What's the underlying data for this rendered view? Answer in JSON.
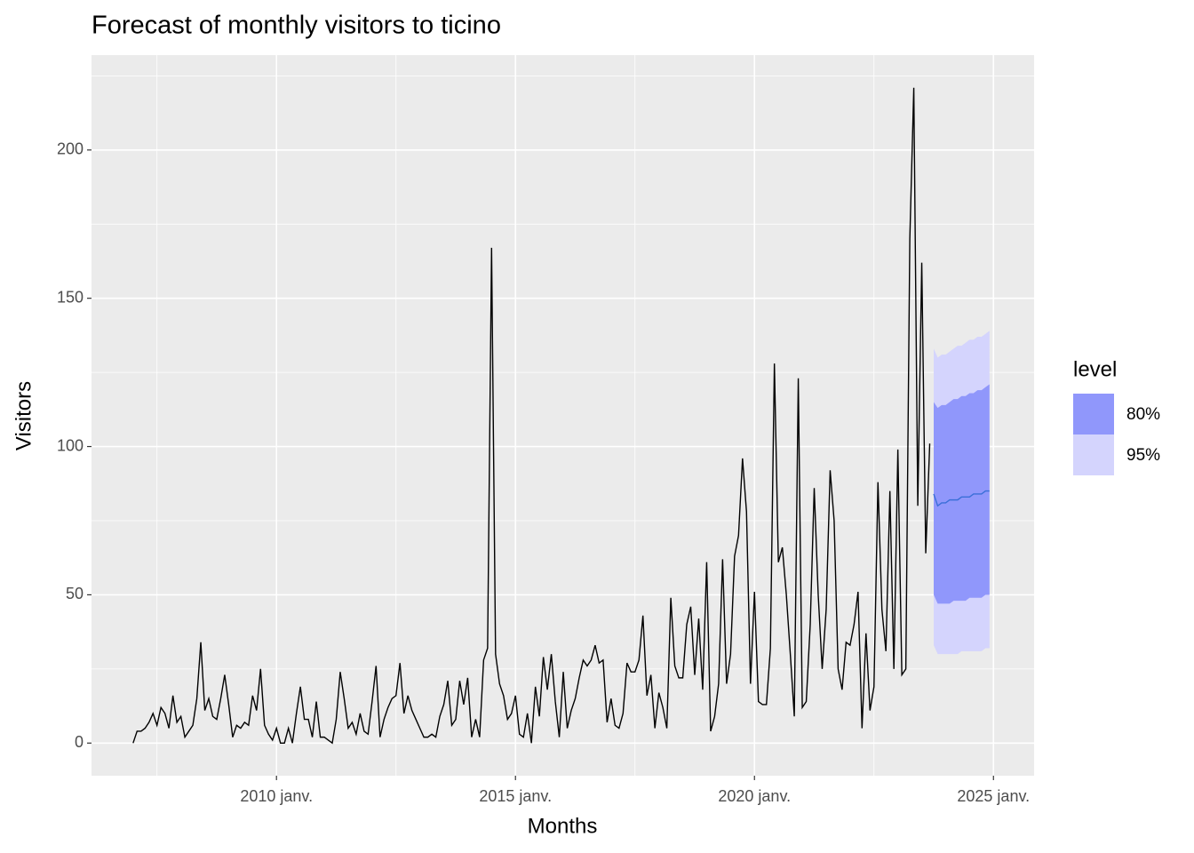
{
  "chart_data": {
    "type": "forecast",
    "title": "Forecast of monthly visitors to ticino",
    "x_label": "Months",
    "y_label": "Visitors",
    "xlim": [
      2006.13,
      2025.85
    ],
    "xticks": [
      {
        "value": 2010,
        "label": "2010 janv."
      },
      {
        "value": 2015,
        "label": "2015 janv."
      },
      {
        "value": 2020,
        "label": "2020 janv."
      },
      {
        "value": 2025,
        "label": "2025 janv."
      }
    ],
    "xminor": [
      2007.5,
      2012.5,
      2017.5,
      2022.5
    ],
    "ylim": [
      -11,
      232
    ],
    "yticks": [
      0,
      50,
      100,
      150,
      200
    ],
    "yminor": [
      25,
      75,
      125,
      175,
      225
    ],
    "grid": true,
    "series": [
      {
        "color": "#000000",
        "x": [
          "2007-01",
          "2007-02",
          "2007-03",
          "2007-04",
          "2007-05",
          "2007-06",
          "2007-07",
          "2007-08",
          "2007-09",
          "2007-10",
          "2007-11",
          "2007-12",
          "2008-01",
          "2008-02",
          "2008-03",
          "2008-04",
          "2008-05",
          "2008-06",
          "2008-07",
          "2008-08",
          "2008-09",
          "2008-10",
          "2008-11",
          "2008-12",
          "2009-01",
          "2009-02",
          "2009-03",
          "2009-04",
          "2009-05",
          "2009-06",
          "2009-07",
          "2009-08",
          "2009-09",
          "2009-10",
          "2009-11",
          "2009-12",
          "2010-01",
          "2010-02",
          "2010-03",
          "2010-04",
          "2010-05",
          "2010-06",
          "2010-07",
          "2010-08",
          "2010-09",
          "2010-10",
          "2010-11",
          "2010-12",
          "2011-01",
          "2011-02",
          "2011-03",
          "2011-04",
          "2011-05",
          "2011-06",
          "2011-07",
          "2011-08",
          "2011-09",
          "2011-10",
          "2011-11",
          "2011-12",
          "2012-01",
          "2012-02",
          "2012-03",
          "2012-04",
          "2012-05",
          "2012-06",
          "2012-07",
          "2012-08",
          "2012-09",
          "2012-10",
          "2012-11",
          "2012-12",
          "2013-01",
          "2013-02",
          "2013-03",
          "2013-04",
          "2013-05",
          "2013-06",
          "2013-07",
          "2013-08",
          "2013-09",
          "2013-10",
          "2013-11",
          "2013-12",
          "2014-01",
          "2014-02",
          "2014-03",
          "2014-04",
          "2014-05",
          "2014-06",
          "2014-07",
          "2014-08",
          "2014-09",
          "2014-10",
          "2014-11",
          "2014-12",
          "2015-01",
          "2015-02",
          "2015-03",
          "2015-04",
          "2015-05",
          "2015-06",
          "2015-07",
          "2015-08",
          "2015-09",
          "2015-10",
          "2015-11",
          "2015-12",
          "2016-01",
          "2016-02",
          "2016-03",
          "2016-04",
          "2016-05",
          "2016-06",
          "2016-07",
          "2016-08",
          "2016-09",
          "2016-10",
          "2016-11",
          "2016-12",
          "2017-01",
          "2017-02",
          "2017-03",
          "2017-04",
          "2017-05",
          "2017-06",
          "2017-07",
          "2017-08",
          "2017-09",
          "2017-10",
          "2017-11",
          "2017-12",
          "2018-01",
          "2018-02",
          "2018-03",
          "2018-04",
          "2018-05",
          "2018-06",
          "2018-07",
          "2018-08",
          "2018-09",
          "2018-10",
          "2018-11",
          "2018-12",
          "2019-01",
          "2019-02",
          "2019-03",
          "2019-04",
          "2019-05",
          "2019-06",
          "2019-07",
          "2019-08",
          "2019-09",
          "2019-10",
          "2019-11",
          "2019-12",
          "2020-01",
          "2020-02",
          "2020-03",
          "2020-04",
          "2020-05",
          "2020-06",
          "2020-07",
          "2020-08",
          "2020-09",
          "2020-10",
          "2020-11",
          "2020-12",
          "2021-01",
          "2021-02",
          "2021-03",
          "2021-04",
          "2021-05",
          "2021-06",
          "2021-07",
          "2021-08",
          "2021-09",
          "2021-10",
          "2021-11",
          "2021-12",
          "2022-01",
          "2022-02",
          "2022-03",
          "2022-04",
          "2022-05",
          "2022-06",
          "2022-07",
          "2022-08",
          "2022-09",
          "2022-10",
          "2022-11",
          "2022-12",
          "2023-01",
          "2023-02",
          "2023-03",
          "2023-04",
          "2023-05",
          "2023-06",
          "2023-07",
          "2023-08",
          "2023-09"
        ],
        "values": [
          0,
          4,
          4,
          5,
          7,
          10,
          6,
          12,
          10,
          5,
          16,
          7,
          9,
          2,
          4,
          6,
          15,
          34,
          11,
          15,
          9,
          8,
          15,
          23,
          13,
          2,
          6,
          5,
          7,
          6,
          16,
          11,
          25,
          6,
          3,
          1,
          5,
          0,
          0,
          5,
          0,
          10,
          19,
          8,
          8,
          2,
          14,
          2,
          2,
          1,
          0,
          8,
          24,
          15,
          5,
          7,
          3,
          10,
          4,
          3,
          14,
          26,
          2,
          8,
          12,
          15,
          16,
          27,
          10,
          16,
          11,
          8,
          5,
          2,
          2,
          3,
          2,
          9,
          13,
          21,
          6,
          8,
          21,
          13,
          22,
          2,
          8,
          2,
          28,
          32,
          167,
          30,
          20,
          16,
          8,
          10,
          16,
          3,
          2,
          10,
          0,
          19,
          9,
          29,
          18,
          30,
          14,
          2,
          24,
          5,
          11,
          15,
          22,
          28,
          26,
          28,
          33,
          27,
          28,
          7,
          15,
          6,
          5,
          10,
          27,
          24,
          24,
          28,
          43,
          16,
          23,
          5,
          17,
          12,
          5,
          49,
          26,
          22,
          22,
          40,
          46,
          23,
          42,
          18,
          61,
          4,
          9,
          20,
          62,
          20,
          30,
          63,
          70,
          96,
          78,
          20,
          51,
          14,
          13,
          13,
          32,
          128,
          61,
          66,
          50,
          30,
          9,
          123,
          12,
          14,
          40,
          86,
          50,
          25,
          45,
          92,
          75,
          25,
          18,
          34,
          33,
          40,
          51,
          5,
          37,
          11,
          19,
          88,
          45,
          31,
          85,
          25,
          99,
          23,
          25,
          170,
          221,
          80,
          162,
          64,
          101
        ]
      }
    ],
    "forecast": {
      "x": [
        "2023-10",
        "2023-11",
        "2023-12",
        "2024-01",
        "2024-02",
        "2024-03",
        "2024-04",
        "2024-05",
        "2024-06",
        "2024-07",
        "2024-08",
        "2024-09",
        "2024-10",
        "2024-11",
        "2024-12"
      ],
      "mean": [
        84,
        80,
        81,
        81,
        82,
        82,
        82,
        83,
        83,
        83,
        84,
        84,
        84,
        85,
        85
      ],
      "color": "#3a6fd8",
      "legend_title": "level",
      "intervals": [
        {
          "name": "80%",
          "color": "#9097fb",
          "lower": [
            50,
            47,
            47,
            47,
            47,
            48,
            48,
            48,
            48,
            49,
            49,
            49,
            49,
            50,
            50
          ],
          "upper": [
            115,
            113,
            114,
            114,
            115,
            116,
            116,
            117,
            117,
            118,
            118,
            119,
            119,
            120,
            121
          ]
        },
        {
          "name": "95%",
          "color": "#d4d4fd",
          "lower": [
            33,
            30,
            30,
            30,
            30,
            30,
            30,
            31,
            31,
            31,
            31,
            31,
            31,
            32,
            32
          ],
          "upper": [
            133,
            130,
            131,
            131,
            132,
            133,
            134,
            134,
            135,
            136,
            136,
            137,
            137,
            138,
            139
          ]
        }
      ]
    }
  }
}
